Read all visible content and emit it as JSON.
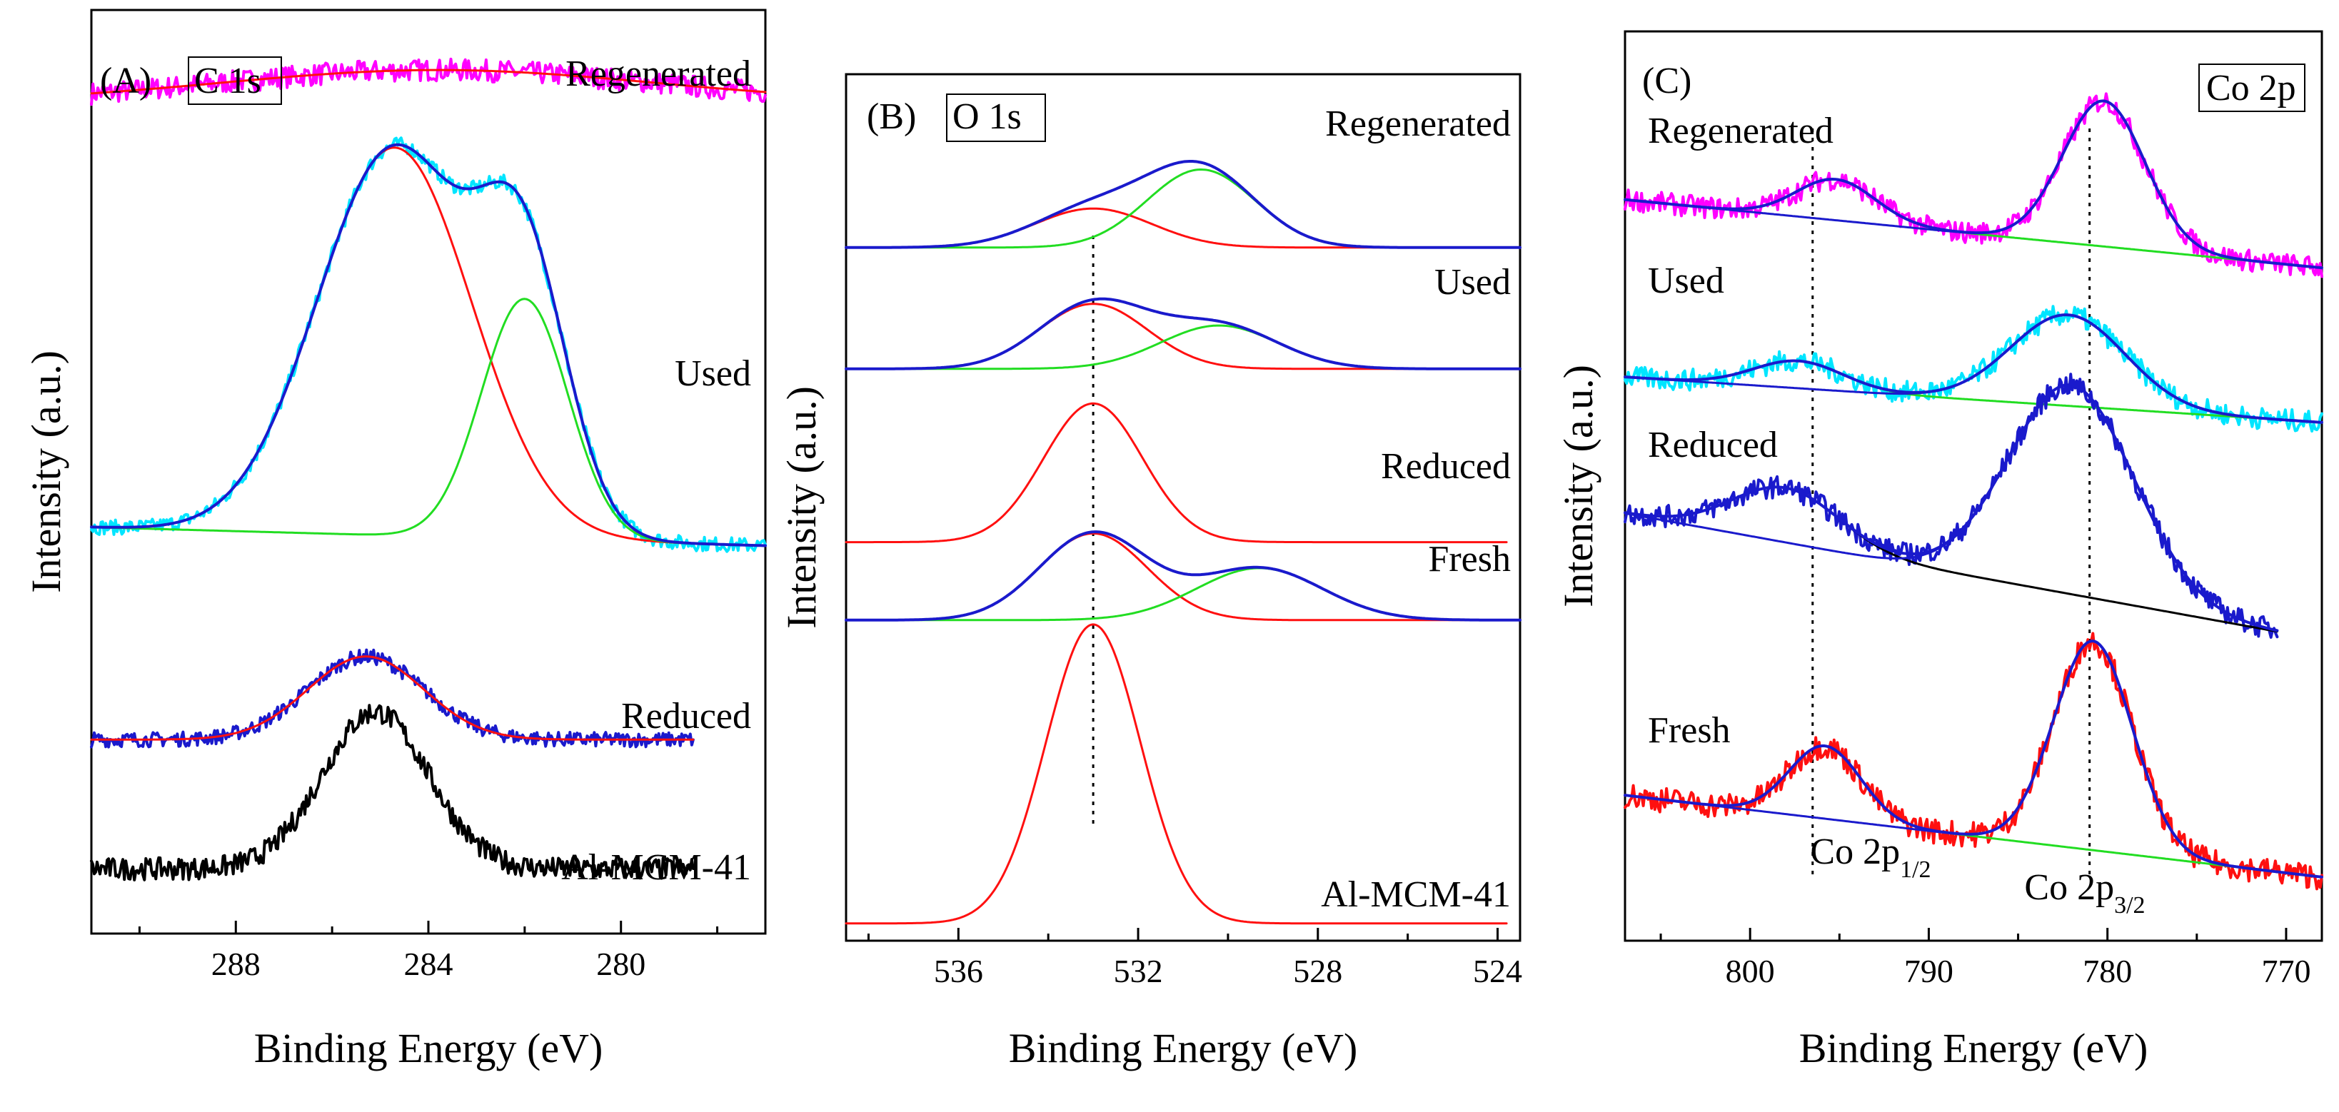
{
  "colors": {
    "magenta": "#ff00ff",
    "cyan": "#00e5ff",
    "blue": "#1a1acc",
    "red": "#ff1010",
    "green": "#22dd22",
    "black": "#000000"
  },
  "chart_data": [
    {
      "type": "line",
      "title": "(A)",
      "element": "C 1s",
      "xlabel": "Binding Energy (eV)",
      "ylabel": "Intensity (a.u.)",
      "xlim": [
        291,
        277
      ],
      "xticks": [
        288,
        284,
        280
      ],
      "xtick_labels": [
        "288",
        "284",
        "280"
      ],
      "reference_lines": [],
      "series": [
        {
          "name": "Regenerated",
          "offset": 0.9,
          "range": [
            291,
            277
          ],
          "noise": 0.012,
          "baseline": [
            0,
            0
          ],
          "components": [
            {
              "center": 283.8,
              "height": 0.035,
              "width": 4.5,
              "color": "red"
            }
          ],
          "envelope": "red",
          "data_color": "magenta"
        },
        {
          "name": "Used",
          "offset": 0.42,
          "range": [
            291,
            277
          ],
          "noise": 0.008,
          "baseline": [
            0.02,
            0
          ],
          "components": [
            {
              "center": 284.7,
              "height": 0.42,
              "width": 1.6,
              "color": "red"
            },
            {
              "center": 282.0,
              "height": 0.26,
              "width": 0.9,
              "color": "green"
            }
          ],
          "envelope": "blue",
          "data_color": "cyan"
        },
        {
          "name": "Reduced",
          "offset": 0.21,
          "range": [
            291,
            278.5
          ],
          "noise": 0.008,
          "baseline": [
            0,
            0
          ],
          "components": [
            {
              "center": 285.3,
              "height": 0.09,
              "width": 1.2,
              "color": "red"
            }
          ],
          "envelope": "red",
          "data_color": "blue"
        },
        {
          "name": "Al-MCM-41",
          "offset": 0.07,
          "range": [
            291,
            278.5
          ],
          "noise": 0.012,
          "baseline": [
            0,
            0
          ],
          "components": [
            {
              "center": 285.1,
              "height": 0.17,
              "width": 1.1,
              "color": "black"
            }
          ],
          "envelope": null,
          "data_color": "black"
        }
      ]
    },
    {
      "type": "line",
      "title": "(B)",
      "element": "O 1s",
      "xlabel": "Binding Energy (eV)",
      "ylabel": "Intensity (a.u.)",
      "xlim": [
        538.5,
        523.5
      ],
      "xticks": [
        536,
        532,
        528,
        524
      ],
      "xtick_labels": [
        "536",
        "532",
        "528",
        "524"
      ],
      "reference_lines": [
        533.0
      ],
      "series": [
        {
          "name": "Regenerated",
          "offset": 0.8,
          "range": [
            538.5,
            523.5
          ],
          "noise": 0,
          "baseline": [
            0,
            0
          ],
          "components": [
            {
              "center": 533.0,
              "height": 0.045,
              "width": 1.3,
              "color": "red"
            },
            {
              "center": 530.6,
              "height": 0.09,
              "width": 1.2,
              "color": "green"
            }
          ],
          "envelope": "blue",
          "data_color": null
        },
        {
          "name": "Used",
          "offset": 0.66,
          "range": [
            538.5,
            523.5
          ],
          "noise": 0,
          "baseline": [
            0,
            0
          ],
          "components": [
            {
              "center": 533.0,
              "height": 0.075,
              "width": 1.2,
              "color": "red"
            },
            {
              "center": 530.2,
              "height": 0.05,
              "width": 1.3,
              "color": "green"
            }
          ],
          "envelope": "blue",
          "data_color": null
        },
        {
          "name": "Reduced",
          "offset": 0.46,
          "range": [
            538.5,
            523.8
          ],
          "noise": 0,
          "baseline": [
            0,
            0
          ],
          "components": [
            {
              "center": 533.0,
              "height": 0.16,
              "width": 1.1,
              "color": "red"
            }
          ],
          "envelope": "blue",
          "data_color": null
        },
        {
          "name": "Fresh",
          "offset": 0.37,
          "range": [
            538.5,
            523.5
          ],
          "noise": 0,
          "baseline": [
            0,
            0
          ],
          "components": [
            {
              "center": 533.0,
              "height": 0.1,
              "width": 1.2,
              "color": "red"
            },
            {
              "center": 529.3,
              "height": 0.06,
              "width": 1.4,
              "color": "green"
            }
          ],
          "envelope": "blue",
          "data_color": null
        },
        {
          "name": "Al-MCM-41",
          "offset": 0.02,
          "range": [
            538.5,
            523.8
          ],
          "noise": 0,
          "baseline": [
            0,
            0
          ],
          "components": [
            {
              "center": 533.0,
              "height": 0.345,
              "width": 1.05,
              "color": "red"
            }
          ],
          "envelope": "black",
          "data_color": null
        }
      ]
    },
    {
      "type": "line",
      "title": "(C)",
      "element": "Co 2p",
      "xlabel": "Binding Energy (eV)",
      "ylabel": "Intensity (a.u.)",
      "xlim": [
        807,
        768
      ],
      "xticks": [
        800,
        790,
        780,
        770
      ],
      "xtick_labels": [
        "800",
        "790",
        "780",
        "770"
      ],
      "reference_lines": [
        796.5,
        781.0
      ],
      "peak_labels": [
        "Co 2p1/2",
        "Co 2p3/2"
      ],
      "series": [
        {
          "name": "Regenerated",
          "offset": 0.78,
          "range": [
            807,
            768
          ],
          "noise": 0.012,
          "baseline": [
            0.035,
            -0.04
          ],
          "components": [
            {
              "center": 795.2,
              "height": 0.045,
              "width": 2.2,
              "color": "green"
            },
            {
              "center": 780.2,
              "height": 0.16,
              "width": 2.3,
              "color": "blue"
            }
          ],
          "envelope": "blue",
          "data_color": "magenta"
        },
        {
          "name": "Used",
          "offset": 0.6,
          "range": [
            807,
            768
          ],
          "noise": 0.012,
          "baseline": [
            0.02,
            -0.03
          ],
          "components": [
            {
              "center": 797.3,
              "height": 0.03,
              "width": 2.5,
              "color": "green"
            },
            {
              "center": 782.2,
              "height": 0.1,
              "width": 3.2,
              "color": "blue"
            }
          ],
          "envelope": "blue",
          "data_color": "cyan"
        },
        {
          "name": "Reduced",
          "offset": 0.39,
          "range": [
            807,
            770.5
          ],
          "noise": 0.012,
          "baseline": [
            0.08,
            -0.05
          ],
          "components": [
            {
              "center": 798.0,
              "height": 0.06,
              "width": 3.0,
              "color": "black"
            },
            {
              "center": 782.0,
              "height": 0.23,
              "width": 3.5,
              "color": "blue"
            }
          ],
          "envelope": "blue",
          "data_color": "blue"
        },
        {
          "name": "Fresh",
          "offset": 0.12,
          "range": [
            807,
            768
          ],
          "noise": 0.014,
          "baseline": [
            0.04,
            -0.05
          ],
          "components": [
            {
              "center": 795.8,
              "height": 0.08,
              "width": 2.0,
              "color": "green"
            },
            {
              "center": 780.8,
              "height": 0.23,
              "width": 2.2,
              "color": "blue"
            }
          ],
          "envelope": "blue",
          "data_color": "red"
        }
      ]
    }
  ]
}
